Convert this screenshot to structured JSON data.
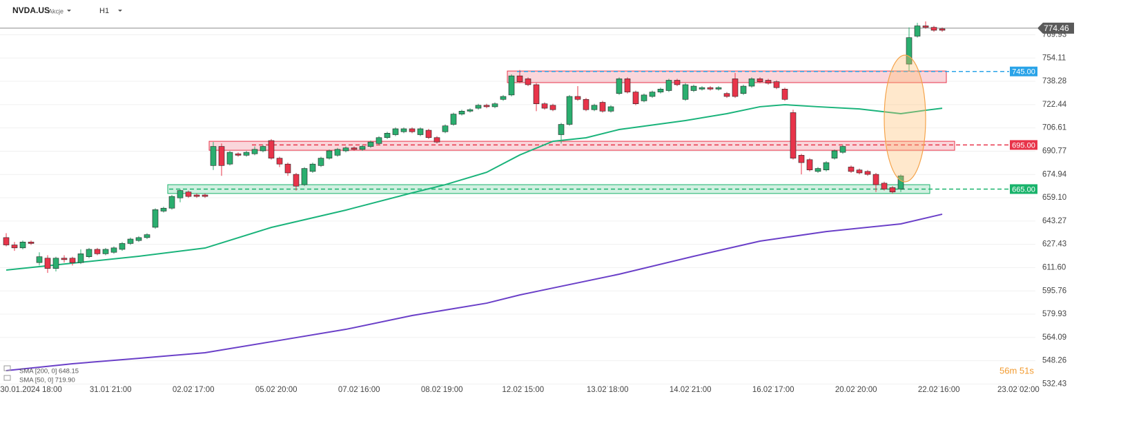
{
  "header": {
    "symbol": "NVDA.US",
    "kind": "Akcje",
    "interval": "H1"
  },
  "legend": [
    "SMA [200, 0] 648.15",
    "SMA [50, 0] 719.90"
  ],
  "timer": "56m 51s",
  "chart_data": {
    "type": "candlestick",
    "ylim": [
      531.2,
      793.6
    ],
    "yticks": [
      532.43,
      548.26,
      564.09,
      579.93,
      595.76,
      {
        "value": 611.6,
        "label": "611.60"
      },
      627.43,
      643.27,
      {
        "value": 659.1,
        "label": "659.10"
      },
      674.94,
      690.77,
      706.61,
      722.44,
      738.28,
      754.11,
      769.93
    ],
    "xlim": [
      -0.75,
      124.25
    ],
    "xticks": [
      {
        "value": 3,
        "label": "30.01.2024 18:00"
      },
      {
        "value": 12.6,
        "label": "31.01 21:00"
      },
      {
        "value": 22.6,
        "label": "02.02 17:00"
      },
      {
        "value": 32.6,
        "label": "05.02 20:00"
      },
      {
        "value": 42.6,
        "label": "07.02 16:00"
      },
      {
        "value": 52.6,
        "label": "08.02 19:00"
      },
      {
        "value": 62.4,
        "label": "12.02 15:00"
      },
      {
        "value": 72.6,
        "label": "13.02 18:00"
      },
      {
        "value": 82.6,
        "label": "14.02 21:00"
      },
      {
        "value": 92.6,
        "label": "16.02 17:00"
      },
      {
        "value": 102.6,
        "label": "20.02 20:00"
      },
      {
        "value": 112.6,
        "label": "22.02 16:00"
      },
      {
        "value": 122.2,
        "label": "23.02 02:00"
      }
    ],
    "up_color": "#2bae6f",
    "down_color": "#e8344a",
    "open": [
      632,
      627,
      625,
      629,
      615,
      618,
      611,
      618,
      618,
      615,
      619,
      624,
      621,
      622,
      624,
      628,
      630,
      632,
      639,
      650,
      652,
      659,
      663,
      661,
      661,
      681,
      694,
      682,
      689,
      688,
      689,
      691,
      698,
      686,
      682,
      675,
      668,
      677,
      681,
      686,
      688,
      691,
      693,
      692,
      694,
      696,
      700,
      702,
      704,
      706,
      702,
      705,
      700,
      704,
      709,
      716,
      718,
      720,
      722,
      721,
      726,
      729,
      742,
      740,
      736,
      723,
      722,
      702,
      709,
      728,
      726,
      719,
      724,
      718,
      730,
      740,
      731,
      725,
      728,
      731,
      732,
      739,
      726,
      732,
      733,
      734,
      733,
      730,
      740,
      730,
      735,
      740,
      739,
      738,
      733,
      717,
      688,
      685,
      677,
      678,
      686,
      690,
      680,
      678,
      677,
      675,
      669,
      666,
      665,
      750,
      769,
      776,
      775,
      774
    ],
    "high": [
      635,
      629,
      630,
      630,
      622,
      620,
      619,
      620,
      619,
      624,
      625,
      625,
      625,
      626,
      629,
      632,
      633,
      635,
      652,
      653,
      661,
      665,
      664,
      662,
      662,
      697,
      696,
      691,
      690,
      691,
      694,
      695,
      699,
      687,
      683,
      676,
      680,
      683,
      687,
      692,
      693,
      694,
      694,
      695,
      698,
      701,
      704,
      707,
      707,
      707,
      707,
      706,
      701,
      709,
      717,
      719,
      720,
      723,
      723,
      724,
      729,
      743,
      746,
      741,
      737,
      724,
      723,
      710,
      729,
      735,
      727,
      723,
      725,
      722,
      741,
      741,
      732,
      730,
      732,
      734,
      740,
      740,
      737,
      736,
      735,
      735,
      735,
      731,
      744,
      736,
      741,
      741,
      740,
      739,
      734,
      719,
      689,
      686,
      680,
      684,
      692,
      695,
      681,
      679,
      678,
      676,
      670,
      667,
      675,
      775,
      778,
      779,
      776,
      775
    ],
    "low": [
      626,
      623,
      624,
      627,
      613,
      608,
      609,
      615,
      613,
      614,
      618,
      620,
      620,
      621,
      623,
      627,
      629,
      631,
      638,
      649,
      651,
      656,
      659,
      659,
      659,
      678,
      674,
      681,
      687,
      687,
      688,
      690,
      685,
      680,
      674,
      664,
      667,
      676,
      680,
      685,
      687,
      690,
      691,
      691,
      693,
      695,
      699,
      701,
      703,
      703,
      701,
      699,
      696,
      703,
      708,
      715,
      717,
      719,
      720,
      720,
      725,
      728,
      737,
      735,
      718,
      719,
      718,
      696,
      708,
      725,
      718,
      718,
      717,
      717,
      729,
      730,
      722,
      724,
      727,
      730,
      731,
      735,
      725,
      731,
      732,
      732,
      732,
      727,
      727,
      729,
      734,
      737,
      736,
      733,
      725,
      685,
      675,
      677,
      676,
      677,
      685,
      689,
      676,
      675,
      674,
      663,
      664,
      662,
      663,
      745,
      768,
      774,
      772,
      772
    ],
    "close": [
      627,
      625,
      629,
      628,
      619,
      611,
      618,
      617,
      615,
      621,
      624,
      621,
      624,
      625,
      628,
      631,
      632,
      634,
      651,
      652,
      660,
      664,
      660,
      660,
      660,
      694,
      681,
      690,
      688,
      690,
      692,
      694,
      686,
      682,
      676,
      667,
      679,
      682,
      686,
      691,
      692,
      693,
      692,
      694,
      697,
      700,
      703,
      706,
      706,
      704,
      706,
      700,
      697,
      708,
      716,
      718,
      719,
      722,
      721,
      723,
      728,
      742,
      738,
      736,
      723,
      720,
      719,
      709,
      728,
      726,
      719,
      722,
      718,
      721,
      740,
      731,
      723,
      729,
      731,
      733,
      739,
      736,
      736,
      735,
      734,
      733,
      734,
      728,
      728,
      735,
      740,
      738,
      737,
      734,
      726,
      686,
      683,
      678,
      679,
      683,
      691,
      694,
      677,
      676,
      675,
      668,
      665,
      663,
      674,
      768,
      776,
      775,
      773,
      773
    ],
    "series": [
      {
        "name": "SMA [200, 0]",
        "color": "#6a3fc8",
        "x": [
          0,
          8,
          16,
          24,
          33,
          41,
          49,
          58,
          62,
          66,
          74,
          83,
          91,
          99,
          108,
          113
        ],
        "values": [
          541.5,
          546.2,
          549.9,
          553.7,
          562.1,
          569.6,
          579,
          587.4,
          593,
          597.7,
          607.1,
          619.3,
          629.6,
          636.1,
          641.3,
          647.9
        ]
      },
      {
        "name": "SMA [50, 0]",
        "color": "#19b37a",
        "x": [
          0,
          8,
          16,
          24,
          32,
          41,
          49,
          53,
          58,
          62,
          66,
          70,
          74,
          82,
          87,
          91,
          94,
          98,
          103,
          108,
          111,
          113
        ],
        "values": [
          609.9,
          614.6,
          619.3,
          624.9,
          638.9,
          650.7,
          662.4,
          668,
          676.4,
          688.2,
          697.5,
          699.9,
          705.5,
          711.6,
          716.3,
          721,
          722.4,
          721,
          719.5,
          716.3,
          718.6,
          720
        ]
      }
    ],
    "zones": [
      {
        "low": 737.4,
        "high": 745.3,
        "start": 61,
        "end": 113,
        "color": "#e8344a"
      },
      {
        "low": 691.4,
        "high": 697.5,
        "start": 25,
        "end": 114,
        "color": "#e8344a"
      },
      {
        "low": 662,
        "high": 668,
        "start": 20,
        "end": 111,
        "color": "#19b36b"
      }
    ],
    "levels": [
      {
        "value": 745,
        "label": "745.00",
        "color": "#29a3e8",
        "start": 62
      },
      {
        "value": 695,
        "label": "695.00",
        "color": "#e8344a",
        "start": 30
      },
      {
        "value": 665,
        "label": "665.00",
        "color": "#19b36b",
        "start": 20
      }
    ],
    "last_price": 774.46,
    "last_color": "#5a5a5a"
  }
}
